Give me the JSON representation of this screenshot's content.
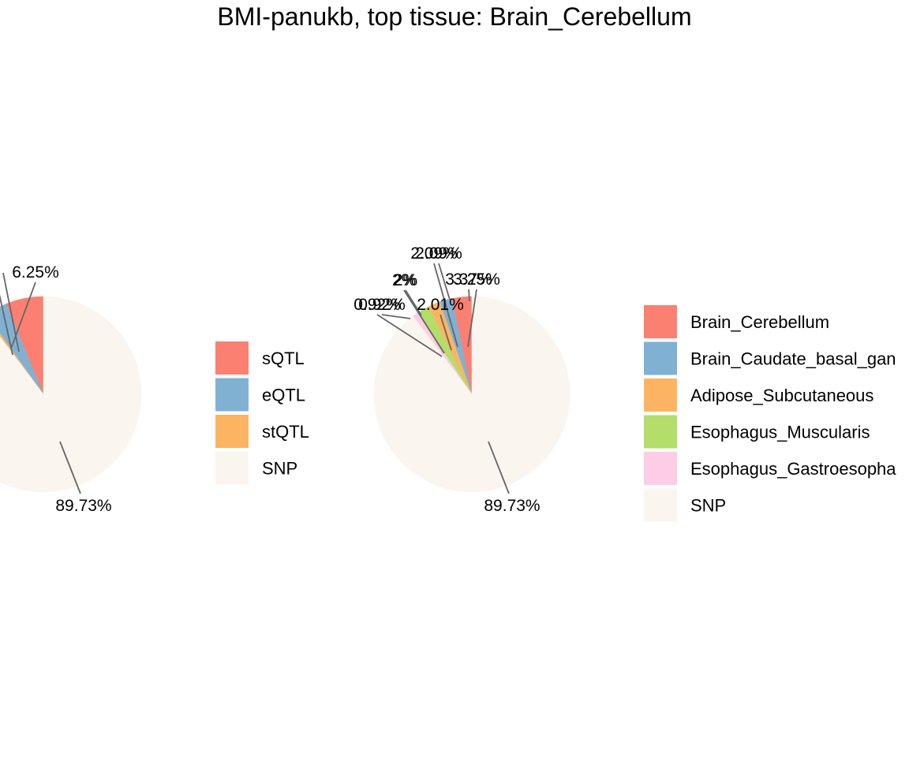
{
  "title": "BMI-panukb, top tissue: Brain_Cerebellum",
  "chart_data": [
    {
      "type": "pie",
      "categories": [
        "sQTL",
        "eQTL",
        "stQTL",
        "SNP"
      ],
      "values": [
        6.25,
        3.6,
        0.42,
        89.73
      ],
      "colors": [
        "#FB8072",
        "#80B1D3",
        "#FDB462",
        "#FAF5EF"
      ],
      "labels": [
        "6.25%",
        "",
        "",
        "89.73%"
      ],
      "legend": {
        "placement": "right",
        "entries": [
          "sQTL",
          "eQTL",
          "stQTL",
          "SNP"
        ]
      }
    },
    {
      "type": "pie",
      "categories": [
        "Brain_Cerebellum",
        "Brain_Caudate_basal_ganglia",
        "Adipose_Subcutaneous",
        "Esophagus_Muscularis",
        "Esophagus_Gastroesophageal_junction",
        "SNP"
      ],
      "values": [
        3.25,
        2.09,
        2.01,
        2.0,
        0.92,
        89.73
      ],
      "colors": [
        "#FB8072",
        "#80B1D3",
        "#FDB462",
        "#B3DE69",
        "#FCCDE5",
        "#FAF5EF"
      ],
      "labels": [
        "3.25%",
        "2.09%",
        "2.01%",
        "2%",
        "0.92%",
        "89.73%"
      ],
      "extra_labels": [
        "3.37%",
        "2.09%",
        "2%",
        "0.92%"
      ],
      "legend": {
        "placement": "right",
        "entries": [
          "Brain_Cerebellum",
          "Brain_Caudate_basal_gan",
          "Adipose_Subcutaneous",
          "Esophagus_Muscularis",
          "Esophagus_Gastroesopha",
          "SNP"
        ]
      }
    }
  ]
}
